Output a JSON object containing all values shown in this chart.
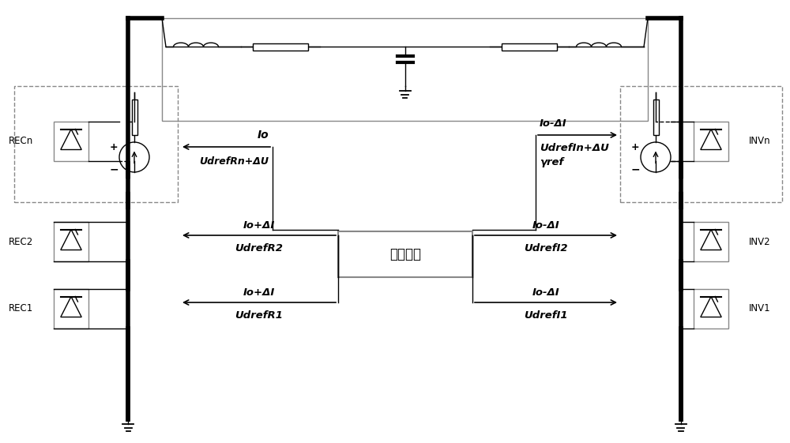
{
  "bg_color": "#ffffff",
  "line_color": "#000000",
  "thick_lw": 4.0,
  "thin_lw": 1.0,
  "med_lw": 1.5,
  "dash_color": "#aaaaaa",
  "gray_color": "#888888",
  "labels": {
    "RECn": "RECn",
    "REC2": "REC2",
    "REC1": "REC1",
    "INVn": "INVn",
    "INV2": "INV2",
    "INV1": "INV1",
    "station_coord": "站间协调",
    "io_rn_line1": "Io",
    "io_rn_line2": "UdrefRn+ΔU",
    "io_r2_line1": "Io+ΔI",
    "io_r2_line2": "UdrefR2",
    "io_r1_line1": "Io+ΔI",
    "io_r1_line2": "UdrefR1",
    "io_in_line1": "Io-ΔI",
    "io_in_line2": "UdrefIn+ΔU",
    "io_in_line3": "γref",
    "io_i2_line1": "Io-ΔI",
    "io_i2_line2": "UdrefI2",
    "io_i1_line1": "Io-ΔI",
    "io_i1_line2": "UdrefI1"
  }
}
